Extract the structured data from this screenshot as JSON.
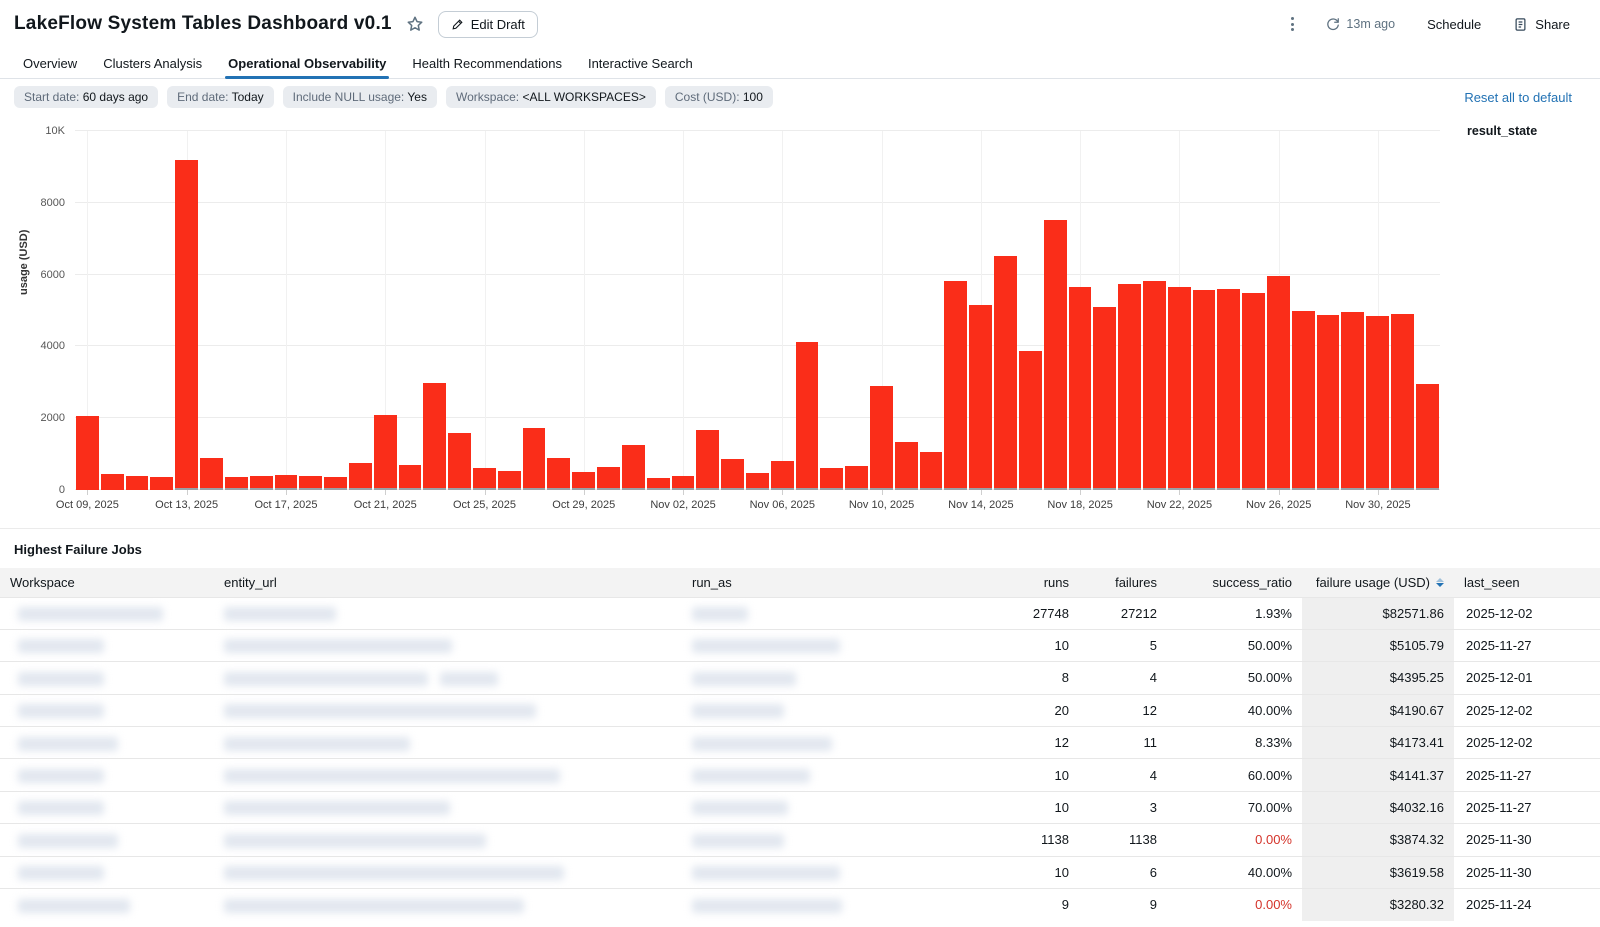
{
  "header": {
    "title": "LakeFlow System Tables Dashboard v0.1",
    "edit_button": "Edit Draft",
    "last_refresh": "13m ago",
    "schedule_label": "Schedule",
    "share_label": "Share"
  },
  "tabs": [
    {
      "label": "Overview",
      "active": false
    },
    {
      "label": "Clusters Analysis",
      "active": false
    },
    {
      "label": "Operational Observability",
      "active": true
    },
    {
      "label": "Health Recommendations",
      "active": false
    },
    {
      "label": "Interactive Search",
      "active": false
    }
  ],
  "filters": {
    "chips": [
      {
        "label": "Start date:",
        "value": "60 days ago"
      },
      {
        "label": "End date:",
        "value": "Today"
      },
      {
        "label": "Include NULL usage:",
        "value": "Yes"
      },
      {
        "label": "Workspace:",
        "value": "<ALL WORKSPACES>"
      },
      {
        "label": "Cost (USD):",
        "value": "100"
      }
    ],
    "reset_label": "Reset all to default"
  },
  "chart_data": {
    "type": "bar",
    "title": "",
    "ylabel": "usage (USD)",
    "legend_title": "result_state",
    "ylim": [
      0,
      10000
    ],
    "y_ticks": [
      "0",
      "2000",
      "4000",
      "6000",
      "8000",
      "10K"
    ],
    "bar_color": "#fa2d19",
    "base_color": "#9aa0a6",
    "grid": true,
    "x": [
      "Oct 09",
      "Oct 10",
      "Oct 11",
      "Oct 12",
      "Oct 13",
      "Oct 14",
      "Oct 15",
      "Oct 16",
      "Oct 17",
      "Oct 18",
      "Oct 19",
      "Oct 20",
      "Oct 21",
      "Oct 22",
      "Oct 23",
      "Oct 24",
      "Oct 25",
      "Oct 26",
      "Oct 27",
      "Oct 28",
      "Oct 29",
      "Oct 30",
      "Oct 31",
      "Nov 01",
      "Nov 02",
      "Nov 03",
      "Nov 04",
      "Nov 05",
      "Nov 06",
      "Nov 07",
      "Nov 08",
      "Nov 09",
      "Nov 10",
      "Nov 11",
      "Nov 12",
      "Nov 13",
      "Nov 14",
      "Nov 15",
      "Nov 16",
      "Nov 17",
      "Nov 18",
      "Nov 19",
      "Nov 20",
      "Nov 21",
      "Nov 22",
      "Nov 23",
      "Nov 24",
      "Nov 25",
      "Nov 26",
      "Nov 27",
      "Nov 28",
      "Nov 29",
      "Nov 30",
      "Dec 01",
      "Dec 02"
    ],
    "values": [
      2050,
      450,
      380,
      350,
      9200,
      900,
      360,
      390,
      410,
      400,
      370,
      760,
      2090,
      690,
      2980,
      1580,
      600,
      530,
      1730,
      890,
      490,
      650,
      1260,
      330,
      380,
      1670,
      870,
      480,
      800,
      4120,
      620,
      660,
      2900,
      1330,
      1050,
      5820,
      5150,
      6520,
      3860,
      7510,
      5650,
      5100,
      5730,
      5830,
      5650,
      5560,
      5600,
      5480,
      5950,
      5000,
      4870,
      4960,
      4850,
      4900,
      2950
    ],
    "gray_base_value": 50,
    "gray_base_from_index": 4,
    "x_tick_labels": [
      "Oct 09, 2025",
      "Oct 13, 2025",
      "Oct 17, 2025",
      "Oct 21, 2025",
      "Oct 25, 2025",
      "Oct 29, 2025",
      "Nov 02, 2025",
      "Nov 06, 2025",
      "Nov 10, 2025",
      "Nov 14, 2025",
      "Nov 18, 2025",
      "Nov 22, 2025",
      "Nov 26, 2025",
      "Nov 30, 2025"
    ],
    "x_tick_indices": [
      0,
      4,
      8,
      12,
      16,
      20,
      24,
      28,
      32,
      36,
      40,
      44,
      48,
      52
    ]
  },
  "table": {
    "title": "Highest Failure Jobs",
    "columns": [
      "Workspace",
      "entity_url",
      "run_as",
      "runs",
      "failures",
      "success_ratio",
      "failure usage (USD)",
      "last_seen"
    ],
    "sorted_column_index": 6,
    "rows": [
      {
        "runs": "27748",
        "failures": "27212",
        "success_ratio": "1.93%",
        "failure_usage": "$82571.86",
        "last_seen": "2025-12-02"
      },
      {
        "runs": "10",
        "failures": "5",
        "success_ratio": "50.00%",
        "failure_usage": "$5105.79",
        "last_seen": "2025-11-27"
      },
      {
        "runs": "8",
        "failures": "4",
        "success_ratio": "50.00%",
        "failure_usage": "$4395.25",
        "last_seen": "2025-12-01"
      },
      {
        "runs": "20",
        "failures": "12",
        "success_ratio": "40.00%",
        "failure_usage": "$4190.67",
        "last_seen": "2025-12-02"
      },
      {
        "runs": "12",
        "failures": "11",
        "success_ratio": "8.33%",
        "failure_usage": "$4173.41",
        "last_seen": "2025-12-02"
      },
      {
        "runs": "10",
        "failures": "4",
        "success_ratio": "60.00%",
        "failure_usage": "$4141.37",
        "last_seen": "2025-11-27"
      },
      {
        "runs": "10",
        "failures": "3",
        "success_ratio": "70.00%",
        "failure_usage": "$4032.16",
        "last_seen": "2025-11-27"
      },
      {
        "runs": "1138",
        "failures": "1138",
        "success_ratio": "0.00%",
        "failure_usage": "$3874.32",
        "last_seen": "2025-11-30"
      },
      {
        "runs": "10",
        "failures": "6",
        "success_ratio": "40.00%",
        "failure_usage": "$3619.58",
        "last_seen": "2025-11-30"
      },
      {
        "runs": "9",
        "failures": "9",
        "success_ratio": "0.00%",
        "failure_usage": "$3280.32",
        "last_seen": "2025-11-24"
      }
    ]
  }
}
